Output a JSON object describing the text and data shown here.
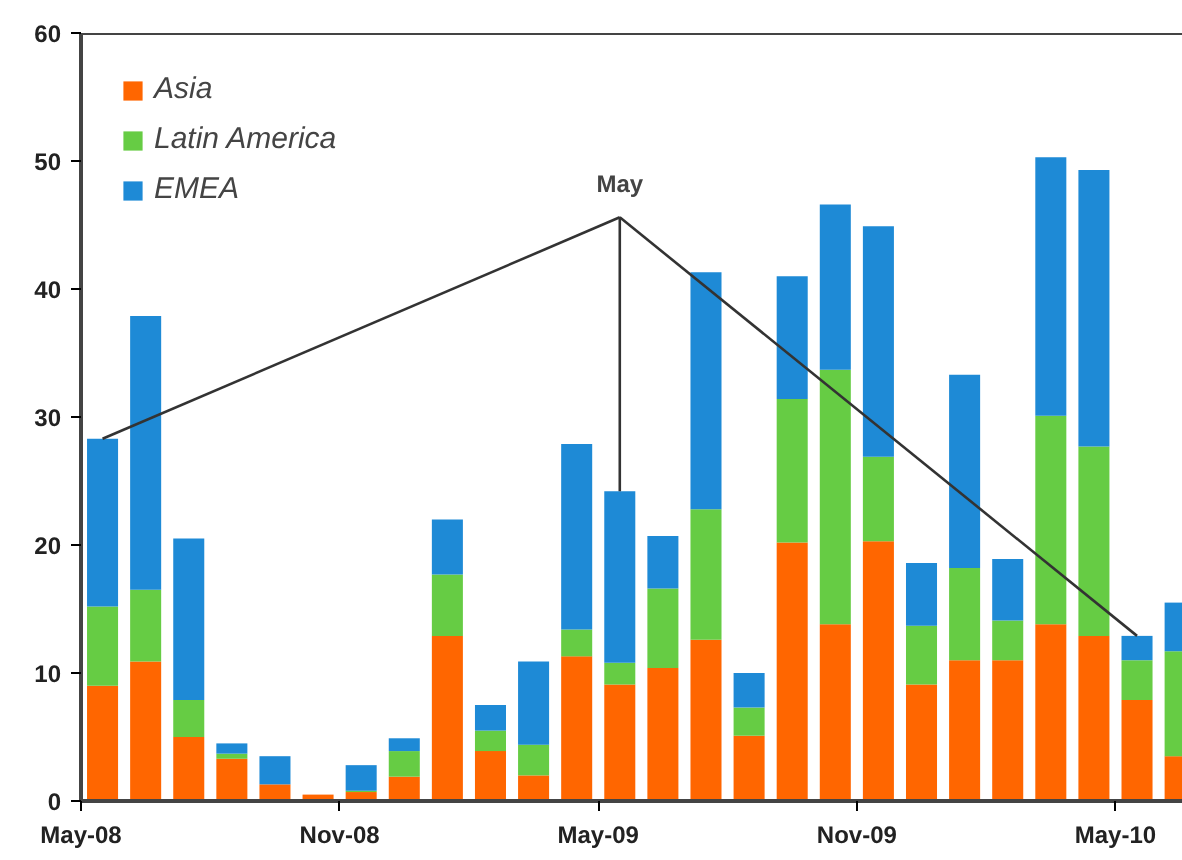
{
  "chart_data": {
    "type": "bar",
    "stacked": true,
    "x": [
      "2008-05-16",
      "2008-06-16",
      "2008-07-16",
      "2008-08-16",
      "2008-09-16",
      "2008-10-16",
      "2008-11-16",
      "2008-12-16",
      "2009-01-16",
      "2009-02-16",
      "2009-03-16",
      "2009-04-16",
      "2009-05-16",
      "2009-06-16",
      "2009-07-16",
      "2009-08-16",
      "2009-09-16",
      "2009-10-16",
      "2009-11-16",
      "2009-12-16",
      "2010-01-16",
      "2010-02-16",
      "2010-03-16",
      "2010-04-16",
      "2010-05-16",
      "2010-06-16"
    ],
    "series": [
      {
        "name": "Asia",
        "color": "#ff6600",
        "values": [
          9,
          10.9,
          5,
          3.3,
          1.3,
          0.5,
          0.7,
          1.9,
          12.9,
          3.9,
          2,
          11.3,
          9.1,
          10.4,
          12.6,
          5.1,
          20.2,
          13.8,
          20.3,
          9.1,
          11,
          11,
          13.8,
          12.9,
          7.9,
          3.5
        ]
      },
      {
        "name": "Latin America",
        "color": "#66cc44",
        "values": [
          6.2,
          5.6,
          2.9,
          0.4,
          0,
          0,
          0.1,
          2,
          4.8,
          1.6,
          2.4,
          2.1,
          1.7,
          6.2,
          10.2,
          2.2,
          11.2,
          19.9,
          6.6,
          4.6,
          7.2,
          3.1,
          16.3,
          14.8,
          3.1,
          8.2
        ]
      },
      {
        "name": "EMEA",
        "color": "#1e8ad6",
        "values": [
          13.1,
          21.4,
          12.6,
          0.8,
          2.2,
          0,
          2,
          1,
          4.3,
          2,
          6.5,
          14.5,
          13.4,
          4.1,
          18.5,
          2.7,
          9.6,
          12.9,
          18,
          4.9,
          15.1,
          4.8,
          20.2,
          21.6,
          1.9,
          3.8
        ]
      }
    ],
    "xlim": [
      "2008-05-01",
      "2010-06-18"
    ],
    "xticks": [
      {
        "value": "2008-05",
        "label": "May-08"
      },
      {
        "value": "2008-11",
        "label": "Nov-08"
      },
      {
        "value": "2009-05",
        "label": "May-09"
      },
      {
        "value": "2009-11",
        "label": "Nov-09"
      },
      {
        "value": "2010-05",
        "label": "May-10"
      }
    ],
    "ylim": [
      0,
      60
    ],
    "yticks": [
      0,
      10,
      20,
      30,
      40,
      50,
      60
    ],
    "annotations": [
      {
        "text": "May",
        "x": "2009-05-16",
        "y": 24.2
      }
    ],
    "legend": "top left",
    "grid": false
  }
}
